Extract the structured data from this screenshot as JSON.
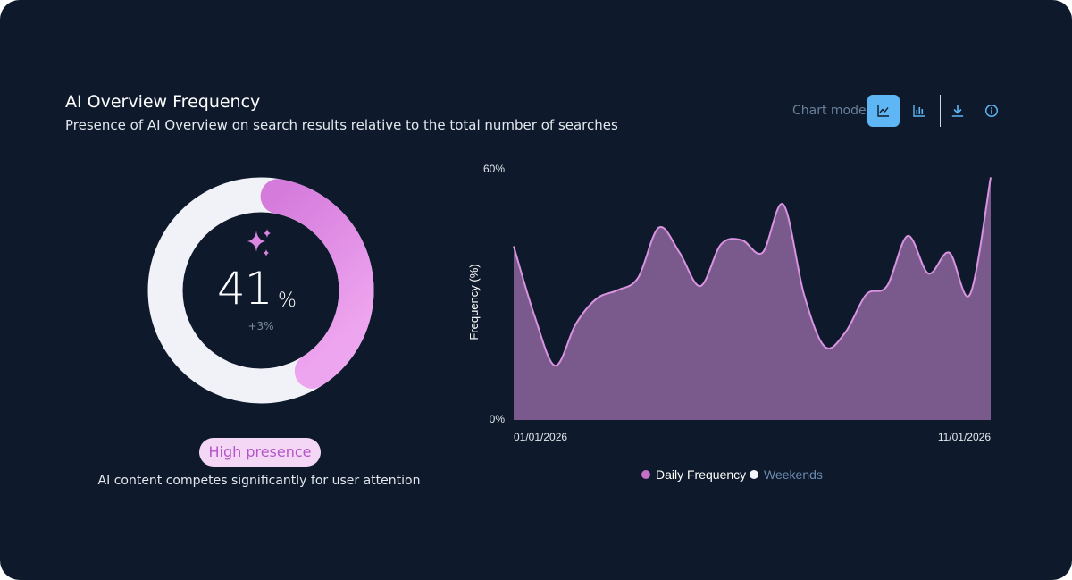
{
  "header": {
    "title": "AI Overview Frequency",
    "subtitle": "Presence of AI Overview on search results relative to the total number of searches"
  },
  "toolbar": {
    "chart_mode_label": "Chart mode",
    "icons": [
      "line-chart-icon",
      "bar-chart-icon",
      "download-icon",
      "info-icon"
    ],
    "active_mode": "line"
  },
  "summary": {
    "value": "41",
    "unit": "%",
    "delta": "+3%",
    "fraction": 0.41,
    "badge": "High presence",
    "description": "AI content competes significantly for user attention"
  },
  "colors": {
    "background": "#0e1a2b",
    "accent_pink": "#e08ae6",
    "area_fill": "#7a5a8c",
    "line": "#d993e0",
    "track": "#f1f2f8",
    "active_button": "#5eb6f4",
    "muted_text": "#6b7f9a"
  },
  "chart_data": {
    "type": "area",
    "title": "",
    "xlabel": "",
    "ylabel": "Frequency (%)",
    "ylim": [
      0,
      60
    ],
    "y_tick_labels": [
      "60%",
      "0%"
    ],
    "x_tick_labels": [
      "01/01/2026",
      "11/01/2026"
    ],
    "grid": false,
    "legend_position": "bottom",
    "legend": [
      {
        "label": "Daily Frequency",
        "color": "#c46fc8",
        "text_color": "#ffffff"
      },
      {
        "label": "Weekends",
        "color": "#f3f4f8",
        "text_color": "#6b8bb0"
      }
    ],
    "series": [
      {
        "name": "Daily Frequency",
        "values": [
          41.5,
          25,
          13,
          23,
          29,
          31,
          34,
          46,
          40,
          32,
          42,
          43,
          40,
          51.5,
          30,
          17.5,
          21,
          30,
          32,
          44,
          35,
          40,
          30,
          58
        ]
      }
    ]
  }
}
